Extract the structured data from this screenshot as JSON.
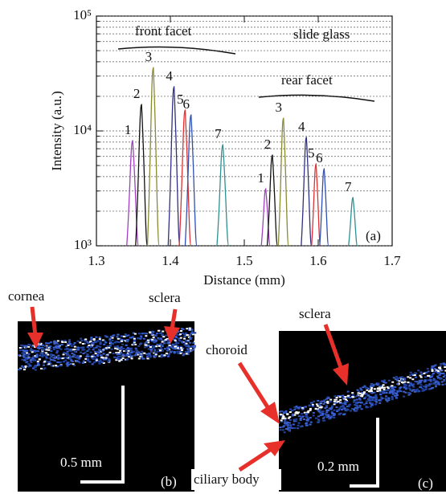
{
  "chart_data": {
    "type": "line",
    "xlabel": "Distance (mm)",
    "ylabel": "Intensity (a.u.)",
    "log_y": true,
    "grid": true,
    "xlim": [
      1.3,
      1.7
    ],
    "xticks": [
      1.3,
      1.4,
      1.5,
      1.6,
      1.7
    ],
    "ylim": [
      1000,
      100000
    ],
    "yticks": [
      {
        "value": 1000,
        "label": "10³"
      },
      {
        "value": 10000,
        "label": "10⁴"
      },
      {
        "value": 100000,
        "label": "10⁵"
      }
    ],
    "yminorticks": [
      2000,
      3000,
      4000,
      5000,
      6000,
      7000,
      8000,
      9000,
      20000,
      30000,
      40000,
      50000,
      60000,
      70000,
      80000,
      90000
    ],
    "annotations": [
      "front facet",
      "slide glass",
      "rear facet",
      "(a)"
    ],
    "series": [
      {
        "name": "1",
        "color": "#a040c0",
        "x": [
          1.341,
          1.349,
          1.357
        ],
        "values": [
          1000,
          8240,
          1000
        ]
      },
      {
        "name": "2",
        "color": "#111111",
        "x": [
          1.353,
          1.361,
          1.369
        ],
        "values": [
          1000,
          17000,
          1000
        ]
      },
      {
        "name": "3",
        "color": "#8a8a30",
        "x": [
          1.369,
          1.377,
          1.385
        ],
        "values": [
          1000,
          35600,
          1000
        ]
      },
      {
        "name": "4",
        "color": "#303080",
        "x": [
          1.397,
          1.405,
          1.413
        ],
        "values": [
          1000,
          24300,
          1000
        ]
      },
      {
        "name": "5",
        "color": "#e03030",
        "x": [
          1.412,
          1.42,
          1.428
        ],
        "values": [
          1000,
          15200,
          1000
        ]
      },
      {
        "name": "6",
        "color": "#3050b0",
        "x": [
          1.42,
          1.428,
          1.436
        ],
        "values": [
          1000,
          13800,
          1000
        ]
      },
      {
        "name": "7",
        "color": "#309090",
        "x": [
          1.463,
          1.471,
          1.479
        ],
        "values": [
          1000,
          7600,
          1000
        ]
      },
      {
        "name": "1",
        "color": "#a040c0",
        "x": [
          1.523,
          1.529,
          1.535
        ],
        "values": [
          1000,
          3140,
          1000
        ]
      },
      {
        "name": "2",
        "color": "#111111",
        "x": [
          1.531,
          1.538,
          1.545
        ],
        "values": [
          1000,
          6170,
          1000
        ]
      },
      {
        "name": "3",
        "color": "#8a8a30",
        "x": [
          1.546,
          1.553,
          1.56
        ],
        "values": [
          1000,
          12900,
          1000
        ]
      },
      {
        "name": "4",
        "color": "#303080",
        "x": [
          1.577,
          1.584,
          1.591
        ],
        "values": [
          1000,
          8800,
          1000
        ]
      },
      {
        "name": "5",
        "color": "#e03030",
        "x": [
          1.591,
          1.597,
          1.603
        ],
        "values": [
          1000,
          5170,
          1000
        ]
      },
      {
        "name": "6",
        "color": "#3050b0",
        "x": [
          1.602,
          1.608,
          1.614
        ],
        "values": [
          1000,
          4690,
          1000
        ]
      },
      {
        "name": "7",
        "color": "#309090",
        "x": [
          1.641,
          1.647,
          1.653
        ],
        "values": [
          1000,
          2630,
          1000
        ]
      }
    ]
  },
  "panels": {
    "b": {
      "label": "(b)",
      "cornea": "cornea",
      "sclera": "sclera",
      "scale": "0.5 mm"
    },
    "c": {
      "label": "(c)",
      "sclera": "sclera",
      "choroid": "choroid",
      "ciliary": "ciliary body",
      "scale": "0.2 mm"
    }
  }
}
